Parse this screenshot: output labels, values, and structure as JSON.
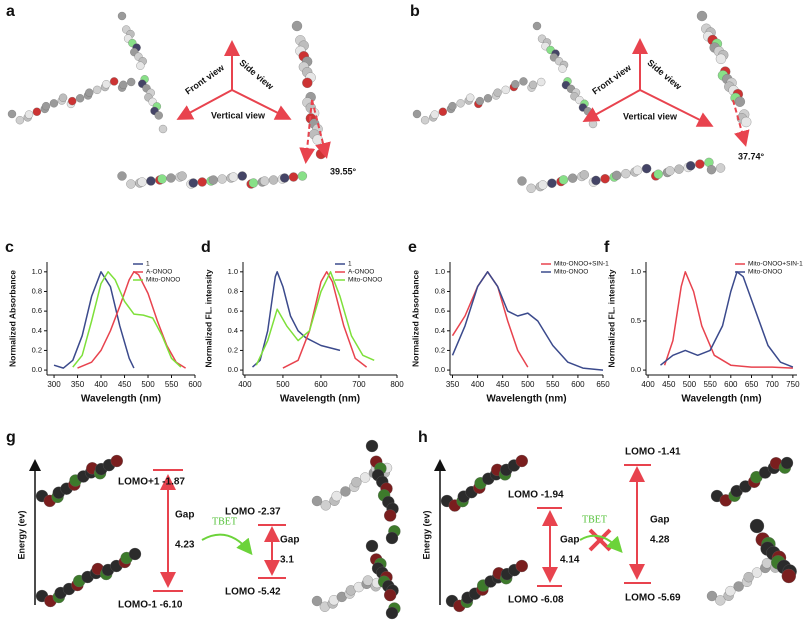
{
  "chart_data": [
    {
      "type": "line",
      "panel_label": "c",
      "ylabel": "Normalized Absorbance",
      "xlabel": "Wavelength (nm)",
      "xlim": [
        285,
        600
      ],
      "xticks": [
        300,
        350,
        400,
        450,
        500,
        550,
        600
      ],
      "ylim": [
        -0.05,
        1.1
      ],
      "yticks": [
        {
          "value": 0,
          "label": "0.0"
        },
        0.2,
        0.4,
        0.6,
        0.8,
        {
          "value": 1,
          "label": "1.0"
        }
      ],
      "legend": "upper-right",
      "series": [
        {
          "name": "1",
          "color": "#3b4a8c",
          "x": [
            300,
            320,
            340,
            360,
            380,
            400,
            420,
            440,
            460,
            470
          ],
          "values": [
            0.05,
            0.02,
            0.1,
            0.35,
            0.75,
            1.0,
            0.85,
            0.45,
            0.12,
            0.02
          ]
        },
        {
          "name": "A-ONOO",
          "color": "#e8434e",
          "x": [
            350,
            380,
            400,
            420,
            440,
            460,
            470,
            480,
            500,
            520,
            540,
            560,
            580
          ],
          "values": [
            0.02,
            0.08,
            0.2,
            0.4,
            0.65,
            0.92,
            1.0,
            0.97,
            0.78,
            0.5,
            0.25,
            0.08,
            0.02
          ]
        },
        {
          "name": "Mito-ONOO",
          "color": "#7ee03a",
          "x": [
            340,
            360,
            380,
            400,
            415,
            430,
            450,
            470,
            490,
            510,
            530,
            550,
            570
          ],
          "values": [
            0.03,
            0.15,
            0.5,
            0.88,
            1.0,
            0.92,
            0.7,
            0.57,
            0.56,
            0.53,
            0.35,
            0.12,
            0.03
          ]
        }
      ]
    },
    {
      "type": "line",
      "panel_label": "d",
      "ylabel": "Normalized FL. intensity",
      "xlabel": "Wavelength (nm)",
      "xlim": [
        395,
        800
      ],
      "xticks": [
        400,
        500,
        600,
        700,
        800
      ],
      "ylim": [
        -0.05,
        1.1
      ],
      "yticks": [
        {
          "value": 0,
          "label": "0.0"
        },
        0.2,
        0.4,
        0.6,
        0.8,
        {
          "value": 1,
          "label": "1.0"
        }
      ],
      "legend": "upper-right",
      "series": [
        {
          "name": "1",
          "color": "#3b4a8c",
          "x": [
            420,
            440,
            460,
            480,
            485,
            500,
            520,
            540,
            560,
            600,
            650
          ],
          "values": [
            0.03,
            0.1,
            0.4,
            0.95,
            1.0,
            0.85,
            0.55,
            0.4,
            0.33,
            0.25,
            0.2
          ]
        },
        {
          "name": "A-ONOO",
          "color": "#e8434e",
          "x": [
            500,
            540,
            570,
            600,
            615,
            630,
            660,
            690,
            720
          ],
          "values": [
            0.02,
            0.1,
            0.4,
            0.9,
            1.0,
            0.9,
            0.45,
            0.12,
            0.03
          ]
        },
        {
          "name": "Mito-ONOO",
          "color": "#7ee03a",
          "x": [
            430,
            460,
            485,
            510,
            540,
            570,
            600,
            625,
            650,
            680,
            710,
            740
          ],
          "values": [
            0.05,
            0.3,
            0.62,
            0.45,
            0.3,
            0.4,
            0.8,
            1.0,
            0.75,
            0.35,
            0.15,
            0.1
          ]
        }
      ]
    },
    {
      "type": "line",
      "panel_label": "e",
      "ylabel": "Normalized Absorbance",
      "xlabel": "Wavelength (nm)",
      "xlim": [
        345,
        650
      ],
      "xticks": [
        350,
        400,
        450,
        500,
        550,
        600,
        650
      ],
      "ylim": [
        -0.05,
        1.1
      ],
      "yticks": [
        {
          "value": 0,
          "label": "0.0"
        },
        0.2,
        0.4,
        0.6,
        0.8,
        {
          "value": 1,
          "label": "1.0"
        }
      ],
      "legend": "upper-right",
      "series": [
        {
          "name": "Mito-ONOO+SIN-1",
          "color": "#e8434e",
          "x": [
            350,
            375,
            400,
            420,
            440,
            460,
            480,
            500
          ],
          "values": [
            0.35,
            0.55,
            0.85,
            1.0,
            0.85,
            0.5,
            0.2,
            0.03
          ]
        },
        {
          "name": "Mito-ONOO",
          "color": "#3b4a8c",
          "x": [
            350,
            375,
            400,
            420,
            440,
            460,
            480,
            500,
            520,
            550,
            580,
            610,
            650
          ],
          "values": [
            0.15,
            0.45,
            0.85,
            1.0,
            0.85,
            0.6,
            0.55,
            0.58,
            0.5,
            0.25,
            0.08,
            0.02,
            0.0
          ]
        }
      ]
    },
    {
      "type": "line",
      "panel_label": "f",
      "ylabel": "Normalized FL. intensity",
      "xlabel": "Wavelength (nm)",
      "xlim": [
        395,
        760
      ],
      "xticks": [
        400,
        450,
        500,
        550,
        600,
        650,
        700,
        750
      ],
      "ylim": [
        -0.05,
        1.1
      ],
      "yticks": [
        {
          "value": 0,
          "label": "0.0"
        },
        0.5,
        {
          "value": 1,
          "label": "1.0"
        }
      ],
      "legend": "upper-right",
      "series": [
        {
          "name": "Mito-ONOO+SIN-1",
          "color": "#e8434e",
          "x": [
            440,
            460,
            480,
            490,
            510,
            530,
            560,
            600,
            650,
            700,
            750
          ],
          "values": [
            0.05,
            0.3,
            0.85,
            1.0,
            0.8,
            0.45,
            0.15,
            0.05,
            0.03,
            0.03,
            0.02
          ]
        },
        {
          "name": "Mito-ONOO",
          "color": "#3b4a8c",
          "x": [
            430,
            460,
            490,
            520,
            550,
            580,
            600,
            615,
            630,
            660,
            690,
            720,
            750
          ],
          "values": [
            0.05,
            0.15,
            0.2,
            0.15,
            0.2,
            0.45,
            0.8,
            1.0,
            0.95,
            0.6,
            0.25,
            0.08,
            0.03
          ]
        }
      ]
    }
  ],
  "panel_a": {
    "label": "a",
    "front_view": "Front view",
    "side_view": "Side view",
    "vertical_view": "Vertical view",
    "angle": "39.55°"
  },
  "panel_b": {
    "label": "b",
    "front_view": "Front view",
    "side_view": "Side view",
    "vertical_view": "Vertical view",
    "angle": "37.74°"
  },
  "panel_g": {
    "label": "g",
    "energy_axis": "Energy (ev)",
    "level_1": "LOMO+1 -1.87",
    "level_2": "LOMO-1 -6.10",
    "gap_1": "Gap",
    "gap_1_value": 4.23,
    "tbet": "TBET",
    "level_3": "LOMO -2.37",
    "level_4": "LOMO -5.42",
    "gap_2": "Gap",
    "gap_2_value": 3.1
  },
  "panel_h": {
    "label": "h",
    "energy_axis": "Energy (ev)",
    "level_1": "LOMO -1.94",
    "level_2": "LOMO -6.08",
    "gap_1": "Gap",
    "gap_1_value": 4.14,
    "tbet": "TBET",
    "level_3": "LOMO -1.41",
    "level_4": "LOMO -5.69",
    "gap_2": "Gap",
    "gap_2_value": 4.28
  }
}
